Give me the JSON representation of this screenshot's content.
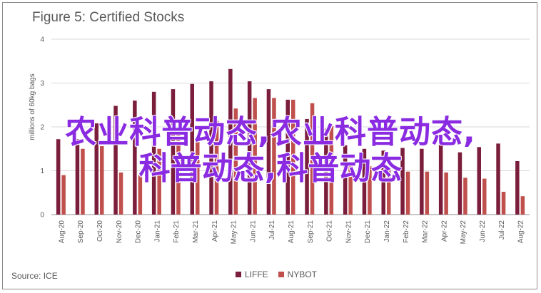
{
  "chart_data": {
    "type": "bar",
    "title": "Figure 5: Certified Stocks",
    "ylabel": "millions of 60kg bags",
    "xlabel": "",
    "ylim": [
      0,
      4
    ],
    "yticks": [
      0,
      1,
      2,
      3,
      4
    ],
    "grid": true,
    "legend_position": "bottom",
    "categories": [
      "Aug-20",
      "Sep-20",
      "Oct-20",
      "Nov-20",
      "Dec-20",
      "Jan-21",
      "Feb-21",
      "Mar-21",
      "Apr-21",
      "May-21",
      "Jun-21",
      "Jul-21",
      "Aug-21",
      "Sep-21",
      "Oct-21",
      "Nov-21",
      "Dec-21",
      "Jan-22",
      "Feb-22",
      "Mar-22",
      "Apr-22",
      "May-22",
      "Jun-22",
      "Jul-22",
      "Aug-22"
    ],
    "series": [
      {
        "name": "LIFFE",
        "color": "#7b1e3c",
        "values": [
          1.72,
          1.72,
          2.08,
          2.48,
          2.6,
          2.8,
          2.86,
          2.98,
          3.04,
          3.32,
          3.04,
          2.86,
          2.62,
          2.18,
          1.96,
          1.58,
          1.5,
          1.46,
          1.52,
          1.5,
          1.6,
          1.42,
          1.54,
          1.62,
          1.22
        ]
      },
      {
        "name": "NYBOT",
        "color": "#c0504d",
        "values": [
          0.9,
          1.5,
          1.56,
          0.96,
          0.9,
          1.5,
          1.84,
          1.66,
          2.14,
          2.42,
          2.66,
          2.66,
          2.62,
          2.54,
          2.02,
          1.2,
          1.1,
          1.06,
          0.98,
          0.98,
          0.96,
          0.84,
          0.82,
          0.52,
          0.42
        ]
      }
    ]
  },
  "source": "Source: ICE",
  "overlay": {
    "line1": "农业科普动态,农业科普动态,",
    "line2": "科普动态,科普动态"
  }
}
